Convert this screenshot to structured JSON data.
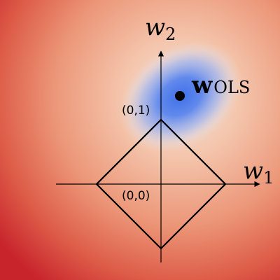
{
  "axes": {
    "x_label": {
      "main": "w",
      "sub": "1"
    },
    "y_label": {
      "main": "w",
      "sub": "2"
    }
  },
  "points": {
    "origin_label": "(0,0)",
    "unit_label": "(0,1)",
    "ols_label": {
      "main": "w",
      "sub": "OLS"
    }
  },
  "constraint_region": {
    "shape": "L1 ball (diamond)",
    "radius": 1
  },
  "colors": {
    "loss_low": "#3f6fe8",
    "loss_mid": "#f3d3c2",
    "loss_high": "#c8242c",
    "outline": "#000000",
    "axis": "#000000"
  }
}
